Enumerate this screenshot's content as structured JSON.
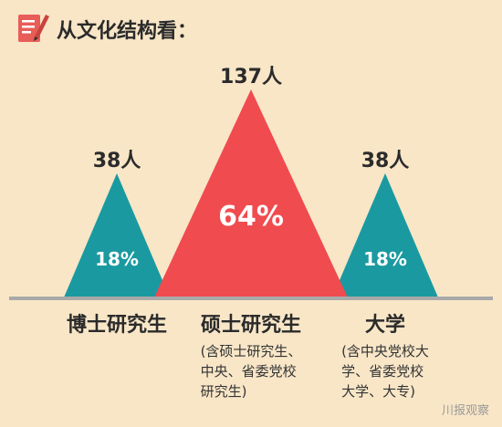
{
  "header": {
    "title": "从文化结构看：",
    "icon": "edit-note-icon",
    "icon_color": "#e85d57"
  },
  "chart_data": {
    "type": "bar",
    "shape": "triangle",
    "categories": [
      "博士研究生",
      "硕士研究生",
      "大学"
    ],
    "series": [
      {
        "values": [
          38,
          137,
          38
        ]
      },
      {
        "values": [
          18,
          64,
          18
        ]
      }
    ],
    "count_labels": [
      "38人",
      "137人",
      "38人"
    ],
    "percent_labels": [
      "18%",
      "64%",
      "18%"
    ],
    "notes": [
      "",
      "(含硕士研究生、\n中央、省委党校\n研究生)",
      "(含中央党校大\n学、省委党校\n大学、大专)"
    ],
    "colors": [
      "#1a9aa0",
      "#f04b4f",
      "#1a9aa0"
    ],
    "baseline_color": "#a9a9a9",
    "background": "#f8e6c7"
  },
  "watermark": "川报观察"
}
